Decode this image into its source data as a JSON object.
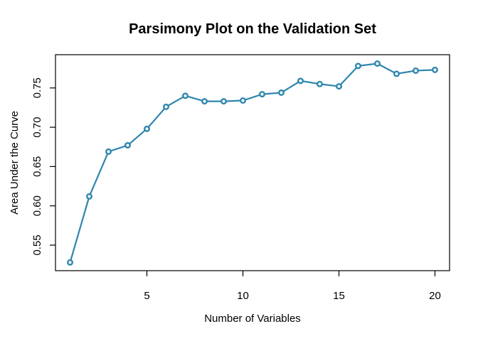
{
  "window": {
    "background": "#ffffff"
  },
  "chart_data": {
    "type": "line",
    "title": "Parsimony Plot on the Validation Set",
    "xlabel": "Number of Variables",
    "ylabel": "Area Under the Curve",
    "x": [
      1,
      2,
      3,
      4,
      5,
      6,
      7,
      8,
      9,
      10,
      11,
      12,
      13,
      14,
      15,
      16,
      17,
      18,
      19,
      20
    ],
    "y": [
      0.528,
      0.612,
      0.669,
      0.677,
      0.698,
      0.726,
      0.74,
      0.733,
      0.733,
      0.734,
      0.742,
      0.744,
      0.759,
      0.755,
      0.752,
      0.778,
      0.781,
      0.768,
      0.772,
      0.773
    ],
    "x_tick_values": [
      5,
      10,
      15,
      20
    ],
    "x_tick_labels": [
      "5",
      "10",
      "15",
      "20"
    ],
    "y_tick_values": [
      0.55,
      0.6,
      0.65,
      0.7,
      0.75
    ],
    "y_tick_labels": [
      "0.55",
      "0.60",
      "0.65",
      "0.70",
      "0.75"
    ],
    "xlim": [
      0.24,
      20.76
    ],
    "ylim": [
      0.5175,
      0.7923
    ],
    "grid": false,
    "legend_position": "none",
    "series": [
      {
        "name": "validation-auc",
        "color": "#2e86ad",
        "marker": "open-circle"
      }
    ]
  },
  "style": {
    "line_color": "#2e86ad",
    "marker_fill": "#ffffff",
    "axis_color": "#000000",
    "text_color": "#000000"
  }
}
